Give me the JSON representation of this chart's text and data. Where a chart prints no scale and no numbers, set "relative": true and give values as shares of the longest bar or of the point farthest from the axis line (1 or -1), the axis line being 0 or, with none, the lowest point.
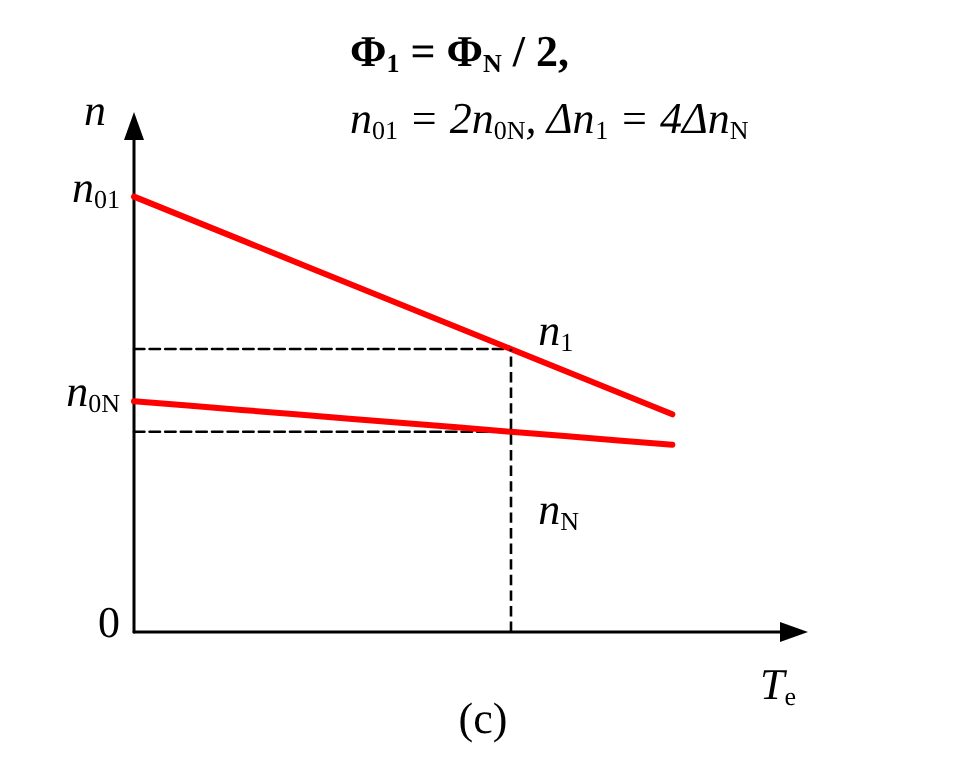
{
  "chart_data": {
    "type": "line",
    "title": "Φ$_{1}$ = Φ$_{N}$ / 2,",
    "subtitle": "n$_{01}$ = 2n$_{0N}$, Δn$_{1}$ = 4Δn$_{N}$",
    "xlabel": "T$_{e}$",
    "ylabel": "n",
    "relative": true,
    "categories": [
      null,
      null,
      null,
      null,
      null,
      null,
      null,
      null,
      null,
      null,
      null,
      null,
      null
    ],
    "series": [
      {
        "name": "n$_{1}$",
        "color": "#ff0000",
        "values": [
          1.0,
          0.95,
          0.9,
          0.85,
          0.8,
          0.75,
          0.7,
          0.65,
          0.6,
          0.55,
          0.5,
          null,
          null
        ]
      },
      {
        "name": "n$_{N}$",
        "color": "#ff0000",
        "values": [
          0.53,
          0.52,
          0.51,
          0.5,
          0.49,
          0.48,
          0.47,
          0.46,
          0.45,
          0.44,
          0.43,
          null,
          null
        ]
      },
      {
        "color": "#000000",
        "line_style": "dashed",
        "values": [
          0.65,
          0.65,
          0.65,
          0.65,
          0.65,
          0.65,
          0.65,
          0.65,
          null,
          null,
          null,
          null,
          null
        ]
      },
      {
        "color": "#000000",
        "line_style": "dashed",
        "values": [
          0.46,
          0.46,
          0.46,
          0.46,
          0.46,
          0.46,
          0.46,
          0.46,
          null,
          null,
          null,
          null,
          null
        ]
      }
    ],
    "annotations": [
      "n$_{01}$",
      "n$_{0N}$",
      "0",
      "(c)"
    ],
    "grid": false,
    "legend": false,
    "marker": "none",
    "line_style": "solid"
  }
}
